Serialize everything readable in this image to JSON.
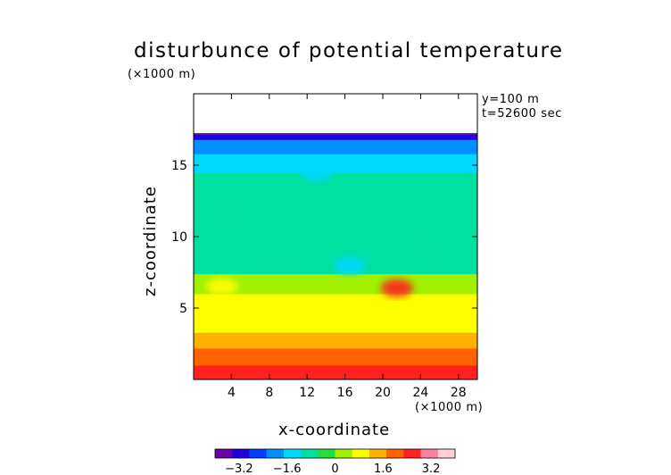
{
  "chart_data": {
    "type": "heatmap",
    "title": "disturbunce of potential temperature",
    "y_unit_label": "(×1000 m)",
    "x_unit_label": "(×1000 m)",
    "xlabel": "x-coordinate",
    "ylabel": "z-coordinate",
    "annotations": [
      "y=100 m",
      "t=52600 sec"
    ],
    "xlim": [
      0,
      30
    ],
    "ylim": [
      0,
      20
    ],
    "x_ticks": [
      4,
      8,
      12,
      16,
      20,
      24,
      28
    ],
    "x_tick_labels": [
      "4",
      "8",
      "12",
      "16",
      "20",
      "24",
      "28"
    ],
    "y_ticks": [
      5,
      10,
      15
    ],
    "y_tick_labels": [
      "5",
      "10",
      "15"
    ],
    "domain_top_z": 17.2,
    "colorbar": {
      "min": -4,
      "max": 4,
      "ticks": [
        -3.2,
        -1.6,
        0,
        1.6,
        3.2
      ],
      "tick_labels": [
        "−3.2",
        "−1.6",
        "0",
        "1.6",
        "3.2"
      ],
      "colors": [
        "#6a00a8",
        "#2200dd",
        "#0040ff",
        "#0090ff",
        "#00d8ff",
        "#00e0a0",
        "#20e040",
        "#a0f000",
        "#ffff00",
        "#ffb000",
        "#ff6000",
        "#ff2020",
        "#ff80a0",
        "#ffd0d8"
      ]
    },
    "layers": [
      {
        "z_from": 0,
        "z_to": 1.0,
        "value": 2.4
      },
      {
        "z_from": 1.0,
        "z_to": 2.2,
        "value": 2.0
      },
      {
        "z_from": 2.2,
        "z_to": 3.3,
        "value": 1.6
      },
      {
        "z_from": 3.3,
        "z_to": 4.6,
        "value": 1.0
      },
      {
        "z_from": 4.6,
        "z_to": 6.0,
        "value": 0.6
      },
      {
        "z_from": 6.0,
        "z_to": 7.4,
        "value": 0.2
      },
      {
        "z_from": 7.4,
        "z_to": 14.5,
        "value": -0.6
      },
      {
        "z_from": 14.5,
        "z_to": 15.8,
        "value": -1.3
      },
      {
        "z_from": 15.8,
        "z_to": 16.8,
        "value": -2.0
      },
      {
        "z_from": 16.8,
        "z_to": 17.2,
        "value": -3.0
      }
    ],
    "features": [
      {
        "x": 21.5,
        "z": 6.4,
        "value": 2.6
      },
      {
        "x": 3.0,
        "z": 6.5,
        "value": 1.0
      },
      {
        "x": 14.5,
        "z": 4.8,
        "value": 1.0
      },
      {
        "x": 16.5,
        "z": 8.0,
        "value": -1.2
      },
      {
        "x": 13.0,
        "z": 14.5,
        "value": -1.2
      },
      {
        "x": 4.0,
        "z": 12.0,
        "value": -1.0
      },
      {
        "x": 25.0,
        "z": 9.0,
        "value": -1.0
      },
      {
        "x": 8.0,
        "z": 8.5,
        "value": -1.0
      }
    ]
  }
}
